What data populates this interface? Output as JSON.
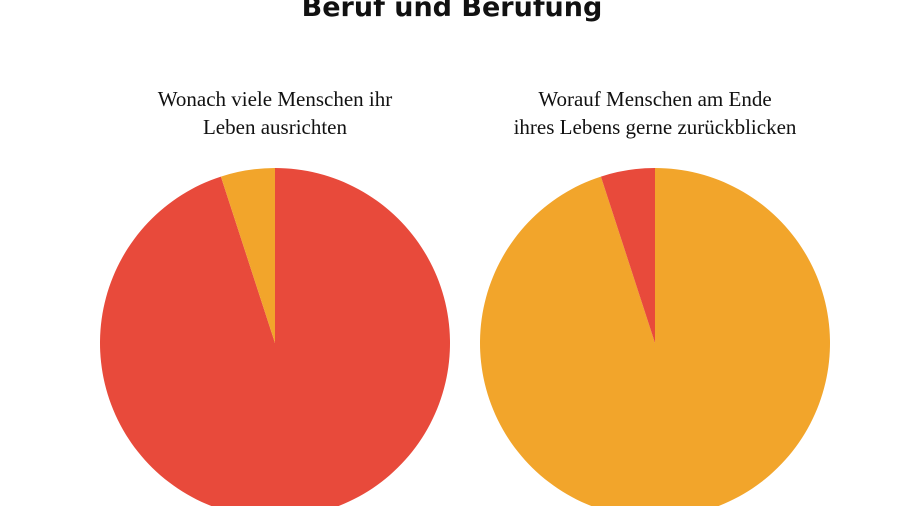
{
  "title": "Beruf und Berufung",
  "chart_data": [
    {
      "type": "pie",
      "title": [
        "Wonach viele Menschen ihr",
        "Leben ausrichten"
      ],
      "values": [
        95,
        5
      ],
      "colors": [
        "#e84a3b",
        "#f2a52b"
      ]
    },
    {
      "type": "pie",
      "title": [
        "Worauf Menschen am Ende",
        "ihres Lebens gerne zurückblicken"
      ],
      "values": [
        95,
        5
      ],
      "colors": [
        "#f2a52b",
        "#e84a3b"
      ]
    }
  ]
}
